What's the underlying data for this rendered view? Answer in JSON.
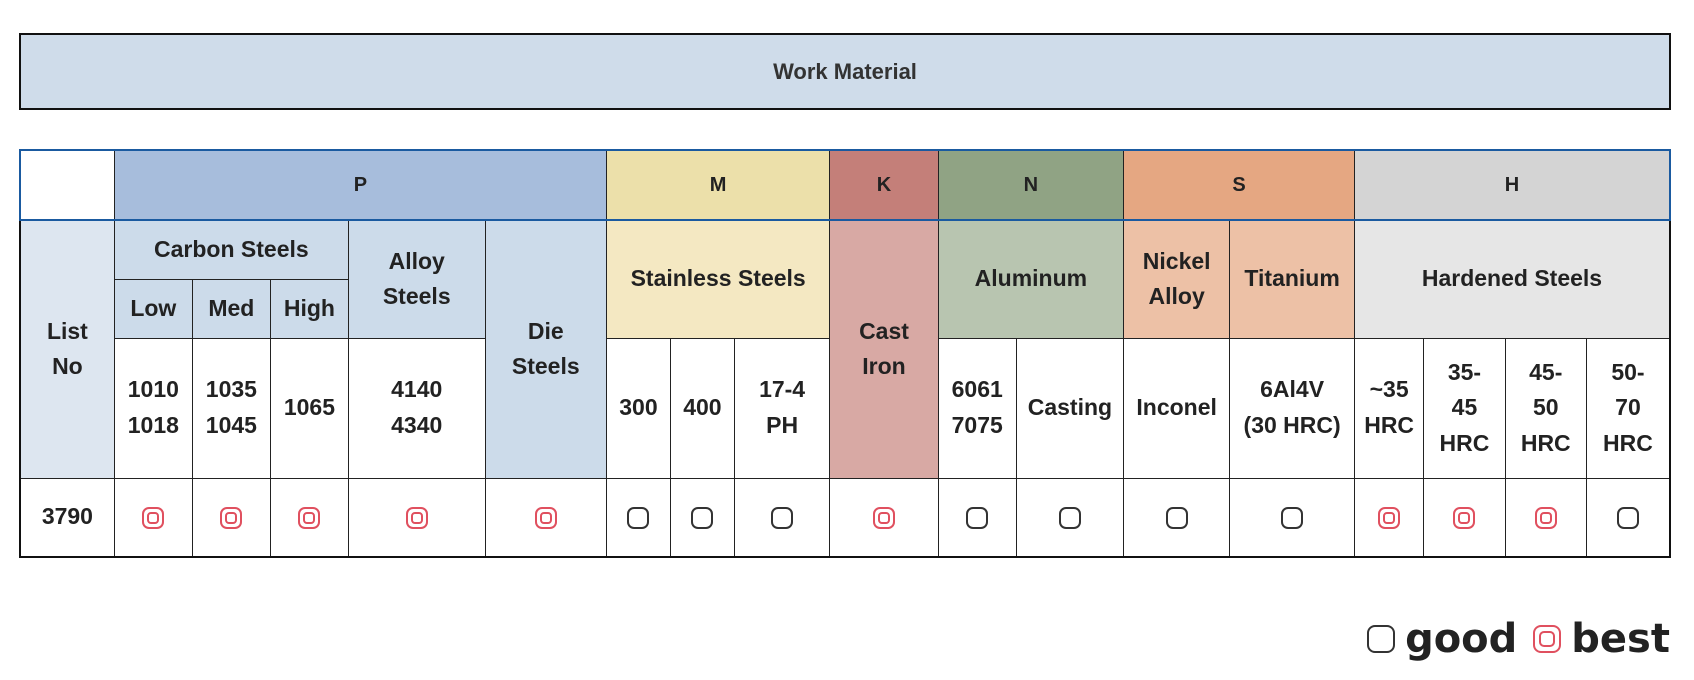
{
  "title": "Work Material",
  "iso_groups": {
    "P": "P",
    "M": "M",
    "K": "K",
    "N": "N",
    "S": "S",
    "H": "H"
  },
  "headers": {
    "list_no": "List\nNo",
    "carbon_steels": "Carbon Steels",
    "low": "Low",
    "med": "Med",
    "high": "High",
    "alloy_steels": "Alloy\nSteels",
    "die_steels": "Die\nSteels",
    "stainless_steels": "Stainless Steels",
    "cast_iron": "Cast\nIron",
    "aluminum": "Aluminum",
    "nickel_alloy": "Nickel\nAlloy",
    "titanium": "Titanium",
    "hardened_steels": "Hardened Steels"
  },
  "grades": {
    "low": "1010\n1018",
    "med": "1035\n1045",
    "high": "1065",
    "alloy": "4140\n4340",
    "ss300": "300",
    "ss400": "400",
    "ss174": "17-4\nPH",
    "al": "6061\n7075",
    "casting": "Casting",
    "inconel": "Inconel",
    "ti": "6Al4V\n(30 HRC)",
    "h35": "~35\nHRC",
    "h3545": "35-\n45\nHRC",
    "h4550": "45-\n50\nHRC",
    "h5070": "50-\n70\nHRC"
  },
  "row": {
    "list_no": "3790",
    "ratings": [
      "best",
      "best",
      "best",
      "best",
      "best",
      "good",
      "good",
      "good",
      "best",
      "good",
      "good",
      "good",
      "good",
      "best",
      "best",
      "best",
      "good"
    ]
  },
  "legend": {
    "good_label": "good",
    "best_label": "best"
  }
}
